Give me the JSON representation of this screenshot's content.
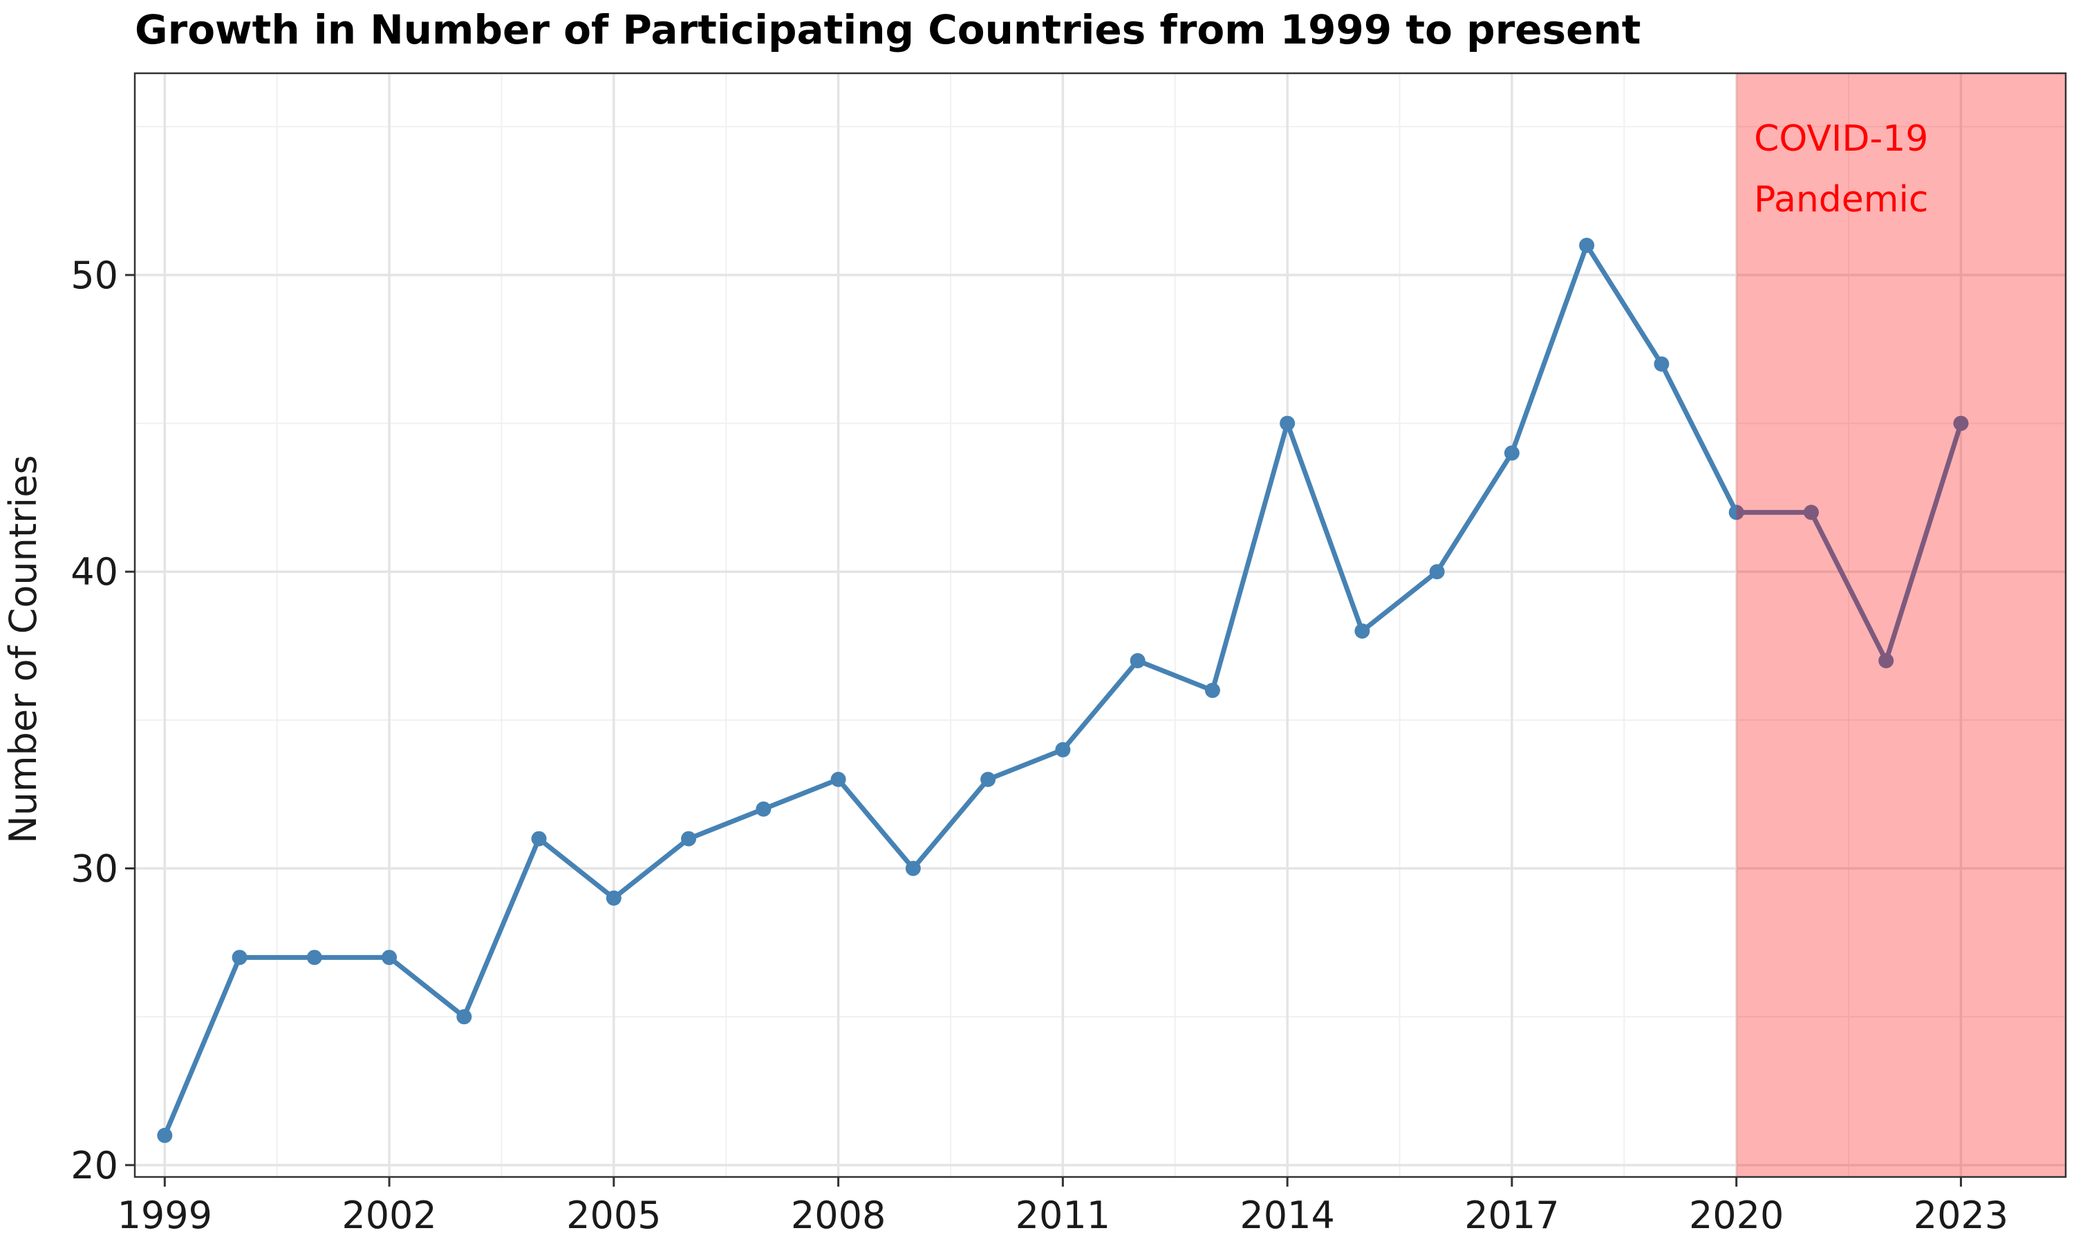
{
  "chart_data": {
    "type": "line",
    "title": "Growth in Number of Participating Countries from 1999 to present",
    "xlabel": "",
    "ylabel": "Number of Countries",
    "x": [
      1999,
      2000,
      2001,
      2002,
      2003,
      2004,
      2005,
      2006,
      2007,
      2008,
      2009,
      2010,
      2011,
      2012,
      2013,
      2014,
      2015,
      2016,
      2017,
      2018,
      2019,
      2020,
      2021,
      2022,
      2023
    ],
    "series": [
      {
        "values": [
          21,
          27,
          27,
          27,
          25,
          31,
          29,
          31,
          32,
          33,
          30,
          33,
          34,
          37,
          36,
          45,
          38,
          40,
          44,
          51,
          47,
          42,
          42,
          37,
          45
        ],
        "color": "#4682b4"
      }
    ],
    "xlim": [
      1998.6,
      2024.4
    ],
    "ylim": [
      19.6,
      56.8
    ],
    "x_ticks": [
      "1999",
      "2002",
      "2005",
      "2008",
      "2011",
      "2014",
      "2017",
      "2020",
      "2023"
    ],
    "y_ticks": [
      "20",
      "30",
      "40",
      "50"
    ],
    "grid": true,
    "legend": "none",
    "shaded_region": {
      "x_start": 2020,
      "x_end": 2024.4,
      "color": "#ff0000",
      "opacity": 0.3,
      "label": [
        "COVID-19",
        "Pandemic"
      ],
      "label_color": "#ff0000"
    }
  }
}
